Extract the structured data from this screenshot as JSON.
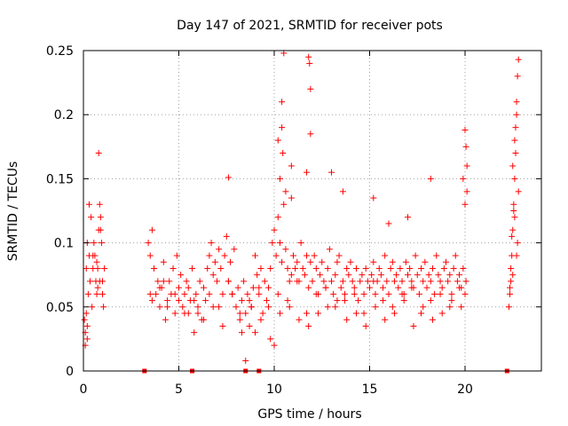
{
  "chart_data": {
    "type": "scatter",
    "title": "Day 147 of 2021, SRMTID for receiver pots",
    "xlabel": "GPS time / hours",
    "ylabel": "SRMTID / TECUs",
    "xlim": [
      0,
      24
    ],
    "ylim": [
      0,
      0.25
    ],
    "x_ticks": [
      0,
      5,
      10,
      15,
      20
    ],
    "x_tick_labels": [
      "0",
      "5",
      "10",
      "15",
      "20"
    ],
    "y_ticks": [
      0,
      0.05,
      0.1,
      0.15,
      0.2,
      0.25
    ],
    "y_tick_labels": [
      "0",
      "0.05",
      "0.1",
      "0.15",
      "0.2",
      "0.25"
    ],
    "grid": true,
    "legend": "none",
    "marker": "plus",
    "color": "#ff0000",
    "series": [
      {
        "name": "SRMTID",
        "x": [
          0.05,
          0.1,
          0.15,
          0.2,
          0.25,
          0.3,
          0.35,
          0.4,
          0.45,
          0.5,
          0.55,
          0.6,
          0.65,
          0.7,
          0.75,
          0.8,
          0.85,
          0.9,
          0.95,
          1.0,
          1.05,
          1.1,
          0.1,
          0.2,
          0.3,
          0.5,
          0.7,
          0.8,
          0.85,
          0.9,
          1.0,
          0.75,
          0.2,
          0.15,
          3.4,
          3.5,
          3.6,
          3.7,
          3.8,
          3.9,
          4.0,
          4.1,
          4.2,
          4.3,
          4.4,
          4.5,
          4.6,
          4.7,
          4.8,
          4.9,
          5.0,
          5.1,
          5.2,
          5.3,
          5.4,
          5.5,
          5.6,
          5.7,
          5.8,
          5.9,
          6.0,
          6.1,
          6.2,
          6.3,
          6.4,
          6.5,
          6.6,
          6.7,
          6.8,
          6.9,
          7.0,
          7.1,
          7.2,
          7.3,
          7.4,
          7.5,
          7.6,
          7.7,
          7.8,
          7.9,
          8.0,
          8.1,
          8.2,
          8.3,
          8.4,
          8.5,
          8.6,
          8.7,
          8.8,
          8.9,
          9.0,
          9.1,
          9.2,
          9.3,
          9.4,
          9.5,
          9.6,
          9.7,
          9.8,
          9.9,
          10.0,
          10.1,
          10.2,
          10.3,
          10.4,
          10.5,
          10.6,
          10.7,
          10.8,
          10.9,
          11.0,
          11.1,
          11.2,
          11.3,
          11.4,
          11.5,
          11.6,
          11.7,
          11.8,
          11.9,
          12.0,
          12.1,
          12.2,
          12.3,
          12.4,
          12.5,
          12.6,
          12.7,
          12.8,
          12.9,
          13.0,
          13.1,
          13.2,
          13.3,
          13.4,
          13.5,
          13.6,
          13.7,
          13.8,
          13.9,
          14.0,
          14.1,
          14.2,
          14.3,
          14.4,
          14.5,
          14.6,
          14.7,
          14.8,
          14.9,
          15.0,
          15.1,
          15.2,
          15.3,
          15.4,
          15.5,
          15.6,
          15.7,
          15.8,
          15.9,
          16.0,
          16.1,
          16.2,
          16.3,
          16.4,
          16.5,
          16.6,
          16.7,
          16.8,
          16.9,
          17.0,
          17.1,
          17.2,
          17.3,
          17.4,
          17.5,
          17.6,
          17.7,
          17.8,
          17.9,
          18.0,
          18.1,
          18.2,
          18.3,
          18.4,
          18.5,
          18.6,
          18.7,
          18.8,
          18.9,
          19.0,
          19.1,
          19.2,
          19.3,
          19.4,
          19.5,
          19.6,
          19.7,
          19.8,
          19.9,
          20.0,
          20.05,
          3.6,
          4.0,
          4.4,
          4.8,
          5.3,
          5.8,
          6.3,
          6.8,
          7.3,
          7.8,
          8.3,
          8.8,
          9.3,
          9.8,
          10.3,
          10.8,
          11.3,
          11.8,
          12.3,
          12.8,
          13.3,
          13.8,
          14.3,
          14.8,
          15.3,
          15.8,
          16.3,
          16.8,
          17.3,
          17.8,
          18.3,
          18.8,
          19.3,
          19.8,
          3.5,
          4.2,
          5.0,
          5.5,
          6.0,
          6.6,
          7.1,
          7.6,
          8.2,
          8.7,
          9.2,
          9.7,
          10.2,
          10.7,
          11.2,
          11.7,
          12.2,
          12.7,
          13.2,
          13.7,
          14.2,
          14.7,
          15.2,
          15.7,
          16.2,
          16.7,
          17.2,
          17.7,
          18.2,
          18.7,
          19.2,
          19.7,
          8.5,
          9.0,
          10.0,
          7.6,
          10.2,
          10.4,
          10.5,
          10.4,
          11.8,
          11.85,
          11.9,
          10.45,
          11.9,
          10.9,
          10.3,
          10.6,
          10.9,
          11.7,
          13.0,
          13.6,
          15.2,
          16.0,
          17.0,
          18.2,
          20.0,
          20.05,
          20.1,
          19.9,
          20.1,
          20.0,
          22.3,
          22.35,
          22.4,
          22.45,
          22.5,
          22.55,
          22.6,
          22.65,
          22.7,
          22.75,
          22.8,
          22.6,
          22.7,
          22.5,
          22.8,
          22.4,
          22.6,
          22.75,
          22.35,
          22.5,
          22.7,
          22.55,
          22.65,
          22.45
        ],
        "y": [
          0.04,
          0.03,
          0.08,
          0.1,
          0.06,
          0.09,
          0.07,
          0.12,
          0.05,
          0.08,
          0.1,
          0.09,
          0.07,
          0.06,
          0.08,
          0.11,
          0.07,
          0.12,
          0.1,
          0.06,
          0.05,
          0.08,
          0.02,
          0.035,
          0.13,
          0.09,
          0.085,
          0.17,
          0.13,
          0.11,
          0.07,
          0.065,
          0.025,
          0.045,
          0.1,
          0.09,
          0.11,
          0.08,
          0.06,
          0.07,
          0.05,
          0.065,
          0.085,
          0.04,
          0.055,
          0.07,
          0.06,
          0.08,
          0.045,
          0.09,
          0.065,
          0.075,
          0.05,
          0.06,
          0.07,
          0.045,
          0.055,
          0.08,
          0.03,
          0.06,
          0.05,
          0.07,
          0.04,
          0.065,
          0.055,
          0.08,
          0.09,
          0.1,
          0.075,
          0.085,
          0.07,
          0.095,
          0.08,
          0.06,
          0.09,
          0.105,
          0.07,
          0.085,
          0.06,
          0.095,
          0.05,
          0.065,
          0.04,
          0.055,
          0.07,
          0.045,
          0.06,
          0.035,
          0.05,
          0.065,
          0.09,
          0.075,
          0.06,
          0.08,
          0.045,
          0.07,
          0.055,
          0.065,
          0.08,
          0.1,
          0.11,
          0.09,
          0.12,
          0.1,
          0.085,
          0.13,
          0.095,
          0.08,
          0.07,
          0.075,
          0.09,
          0.08,
          0.085,
          0.07,
          0.1,
          0.08,
          0.075,
          0.09,
          0.065,
          0.085,
          0.07,
          0.09,
          0.08,
          0.06,
          0.075,
          0.085,
          0.07,
          0.065,
          0.08,
          0.095,
          0.07,
          0.06,
          0.075,
          0.085,
          0.09,
          0.065,
          0.07,
          0.06,
          0.08,
          0.075,
          0.085,
          0.07,
          0.065,
          0.08,
          0.055,
          0.07,
          0.075,
          0.06,
          0.08,
          0.07,
          0.065,
          0.075,
          0.085,
          0.06,
          0.07,
          0.08,
          0.075,
          0.065,
          0.09,
          0.07,
          0.06,
          0.08,
          0.085,
          0.07,
          0.075,
          0.065,
          0.08,
          0.07,
          0.06,
          0.085,
          0.075,
          0.08,
          0.07,
          0.065,
          0.09,
          0.075,
          0.06,
          0.08,
          0.07,
          0.085,
          0.065,
          0.075,
          0.07,
          0.08,
          0.06,
          0.09,
          0.075,
          0.07,
          0.065,
          0.08,
          0.085,
          0.07,
          0.075,
          0.06,
          0.08,
          0.09,
          0.07,
          0.075,
          0.065,
          0.08,
          0.06,
          0.07,
          0.055,
          0.065,
          0.05,
          0.06,
          0.045,
          0.055,
          0.04,
          0.05,
          0.035,
          0.06,
          0.03,
          0.05,
          0.04,
          0.025,
          0.045,
          0.05,
          0.04,
          0.035,
          0.045,
          0.05,
          0.055,
          0.04,
          0.045,
          0.035,
          0.05,
          0.04,
          0.045,
          0.055,
          0.035,
          0.05,
          0.04,
          0.045,
          0.055,
          0.05,
          0.06,
          0.07,
          0.055,
          0.065,
          0.045,
          0.06,
          0.05,
          0.07,
          0.045,
          0.055,
          0.065,
          0.05,
          0.06,
          0.055,
          0.07,
          0.045,
          0.06,
          0.065,
          0.05,
          0.055,
          0.06,
          0.045,
          0.07,
          0.055,
          0.05,
          0.06,
          0.065,
          0.045,
          0.055,
          0.06,
          0.05,
          0.065,
          0.008,
          0.03,
          0.02,
          0.151,
          0.18,
          0.21,
          0.248,
          0.19,
          0.245,
          0.24,
          0.22,
          0.17,
          0.185,
          0.16,
          0.15,
          0.14,
          0.135,
          0.155,
          0.155,
          0.14,
          0.135,
          0.115,
          0.12,
          0.15,
          0.188,
          0.175,
          0.16,
          0.15,
          0.14,
          0.13,
          0.05,
          0.06,
          0.07,
          0.09,
          0.11,
          0.13,
          0.15,
          0.19,
          0.2,
          0.23,
          0.243,
          0.18,
          0.21,
          0.16,
          0.14,
          0.08,
          0.12,
          0.1,
          0.065,
          0.075,
          0.09,
          0.125,
          0.17,
          0.105
        ]
      }
    ],
    "baseline_markers_x": [
      3.2,
      5.7,
      8.5,
      9.2,
      22.2
    ],
    "baseline_markers_y": [
      0,
      0,
      0,
      0,
      0
    ]
  }
}
